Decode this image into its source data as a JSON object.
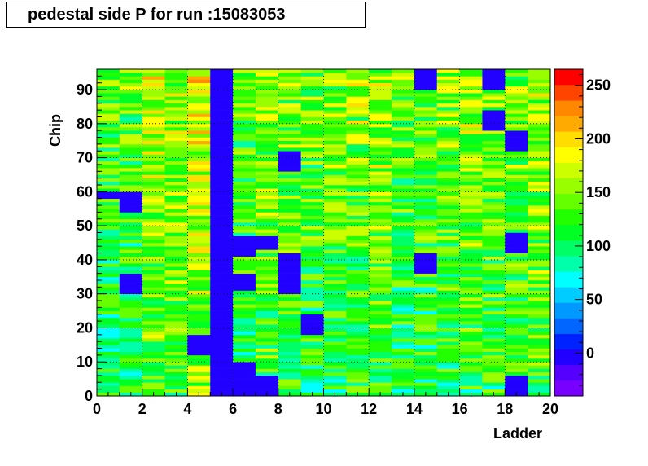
{
  "title": "pedestal side P for run :15083053",
  "chart_data": {
    "type": "heatmap",
    "title": "pedestal side P for run :15083053",
    "xlabel": "Ladder",
    "ylabel": "Chip",
    "xlim": [
      0,
      20
    ],
    "ylim": [
      0,
      96
    ],
    "x_bins": 20,
    "y_bins": 96,
    "x_ticks": [
      0,
      2,
      4,
      6,
      8,
      10,
      12,
      14,
      16,
      18,
      20
    ],
    "y_ticks": [
      0,
      10,
      20,
      30,
      40,
      50,
      60,
      70,
      80,
      90
    ],
    "colorbar": {
      "min": -40,
      "max": 265,
      "ticks": [
        0,
        50,
        100,
        150,
        200,
        250
      ],
      "colors": [
        "#7700ff",
        "#5500ff",
        "#2200ff",
        "#0022ff",
        "#0066ff",
        "#0099ff",
        "#00ccff",
        "#00ffff",
        "#00ffaa",
        "#00ff66",
        "#00ff22",
        "#22ff00",
        "#66ff00",
        "#99ff00",
        "#ccff00",
        "#ffff00",
        "#ffdd00",
        "#ffaa00",
        "#ff8800",
        "#ff4400",
        "#ff0000"
      ]
    },
    "ladder_typical_values": [
      115,
      120,
      150,
      145,
      165,
      0,
      115,
      135,
      130,
      125,
      130,
      135,
      140,
      120,
      125,
      130,
      140,
      135,
      130,
      140
    ],
    "dead_regions": [
      {
        "ladder": 5,
        "chip_from": 0,
        "chip_to": 96,
        "value": 0
      },
      {
        "ladder": 0,
        "chip_from": 58,
        "chip_to": 60,
        "value": 0
      },
      {
        "ladder": 1,
        "chip_from": 54,
        "chip_to": 60,
        "value": 0
      },
      {
        "ladder": 6,
        "chip_from": 41,
        "chip_to": 47,
        "value": 0
      },
      {
        "ladder": 6,
        "chip_from": 31,
        "chip_to": 36,
        "value": 0
      },
      {
        "ladder": 6,
        "chip_from": 0,
        "chip_to": 10,
        "value": 0
      },
      {
        "ladder": 7,
        "chip_from": 43,
        "chip_to": 47,
        "value": 0
      },
      {
        "ladder": 8,
        "chip_from": 66,
        "chip_to": 72,
        "value": 0
      },
      {
        "ladder": 8,
        "chip_from": 30,
        "chip_to": 42,
        "value": 0
      },
      {
        "ladder": 7,
        "chip_from": 0,
        "chip_to": 6,
        "value": 0
      },
      {
        "ladder": 4,
        "chip_from": 12,
        "chip_to": 18,
        "value": 0
      },
      {
        "ladder": 9,
        "chip_from": 18,
        "chip_to": 24,
        "value": 0
      },
      {
        "ladder": 14,
        "chip_from": 90,
        "chip_to": 96,
        "value": 0
      },
      {
        "ladder": 14,
        "chip_from": 36,
        "chip_to": 42,
        "value": 0
      },
      {
        "ladder": 17,
        "chip_from": 90,
        "chip_to": 96,
        "value": 0
      },
      {
        "ladder": 17,
        "chip_from": 78,
        "chip_to": 84,
        "value": 0
      },
      {
        "ladder": 18,
        "chip_from": 72,
        "chip_to": 78,
        "value": 0
      },
      {
        "ladder": 18,
        "chip_from": 42,
        "chip_to": 48,
        "value": 0
      },
      {
        "ladder": 18,
        "chip_from": 0,
        "chip_to": 6,
        "value": 0
      },
      {
        "ladder": 1,
        "chip_from": 30,
        "chip_to": 36,
        "value": 0
      }
    ]
  }
}
